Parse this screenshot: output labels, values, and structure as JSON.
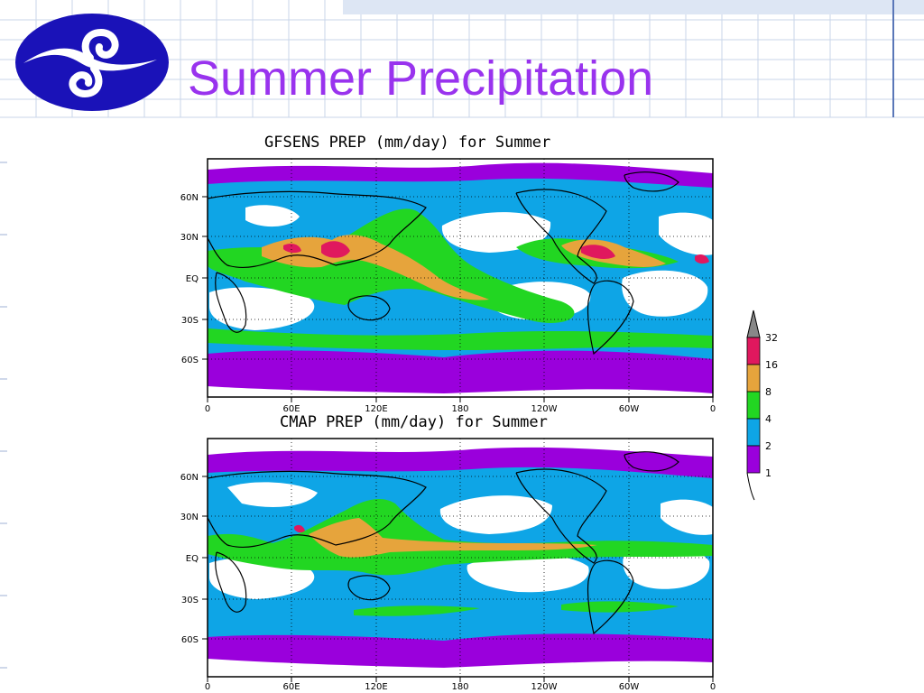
{
  "slide": {
    "title": "Summer Precipitation",
    "title_color": "#9933ee",
    "logo_icon": "cloud-swirl-icon",
    "logo_color": "#1a12b8"
  },
  "palette": {
    "white": "#ffffff",
    "purple": "#9a00dc",
    "blue": "#0ea5e6",
    "green": "#22d622",
    "orange": "#e6a43c",
    "red": "#e0185e",
    "gray": "#888888"
  },
  "legend": {
    "labels": [
      "1",
      "2",
      "4",
      "8",
      "16",
      "32"
    ],
    "bin_colors": [
      "#9a00dc",
      "#0ea5e6",
      "#22d622",
      "#e6a43c",
      "#e0185e"
    ],
    "overflow_color": "#888888"
  },
  "maps": [
    {
      "title": "GFSENS PREP (mm/day) for Summer",
      "x_ticks": [
        "0",
        "60E",
        "120E",
        "180",
        "120W",
        "60W",
        "0"
      ],
      "y_ticks": [
        "60N",
        "30N",
        "EQ",
        "30S",
        "60S"
      ]
    },
    {
      "title": "CMAP PREP (mm/day) for Summer",
      "x_ticks": [
        "0",
        "60E",
        "120E",
        "180",
        "120W",
        "60W",
        "0"
      ],
      "y_ticks": [
        "60N",
        "30N",
        "EQ",
        "30S",
        "60S"
      ]
    }
  ]
}
